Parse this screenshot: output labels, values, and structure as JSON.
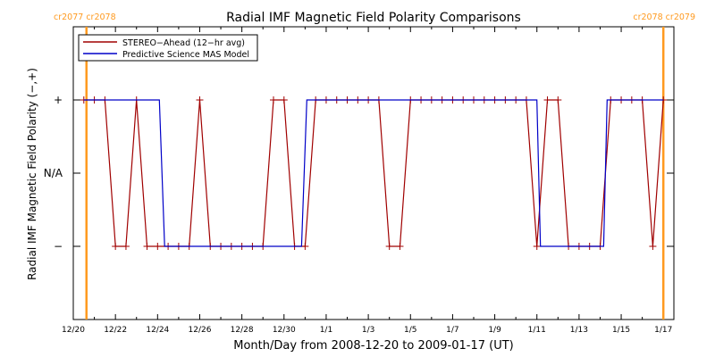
{
  "chart_data": {
    "type": "line",
    "title": "Radial IMF Magnetic Field Polarity Comparisons",
    "xlabel": "Month/Day from 2008-12-20 to 2009-01-17 (UT)",
    "ylabel": "Radial IMF Magnetic Field Polarity (−,+)",
    "xlim": [
      "2008-12-20T00:00",
      "2009-01-17T12:00"
    ],
    "ylim": [
      -2,
      2
    ],
    "y_ticks": [
      {
        "value": 1,
        "label": "+"
      },
      {
        "value": 0,
        "label": "N/A"
      },
      {
        "value": -1,
        "label": "−"
      }
    ],
    "x_ticks": [
      {
        "date": "2008-12-20",
        "label": "12/20"
      },
      {
        "date": "2008-12-22",
        "label": "12/22"
      },
      {
        "date": "2008-12-24",
        "label": "12/24"
      },
      {
        "date": "2008-12-26",
        "label": "12/26"
      },
      {
        "date": "2008-12-28",
        "label": "12/28"
      },
      {
        "date": "2008-12-30",
        "label": "12/30"
      },
      {
        "date": "2009-01-01",
        "label": "1/1"
      },
      {
        "date": "2009-01-03",
        "label": "1/3"
      },
      {
        "date": "2009-01-05",
        "label": "1/5"
      },
      {
        "date": "2009-01-07",
        "label": "1/7"
      },
      {
        "date": "2009-01-09",
        "label": "1/9"
      },
      {
        "date": "2009-01-11",
        "label": "1/11"
      },
      {
        "date": "2009-01-13",
        "label": "1/13"
      },
      {
        "date": "2009-01-15",
        "label": "1/15"
      },
      {
        "date": "2009-01-17",
        "label": "1/17"
      }
    ],
    "vertical_markers": [
      {
        "date": "2008-12-20T15:00",
        "label": "cr2077 cr2078",
        "label_side": "top-left"
      },
      {
        "date": "2009-01-17T00:00",
        "label": "cr2078 cr2079",
        "label_side": "top-right"
      }
    ],
    "legend": {
      "placement": "top-left"
    },
    "series": [
      {
        "name": "STEREO−Ahead (12−hr avg)",
        "color": "#a00000",
        "markers": "plus",
        "points": [
          [
            "2008-12-20T12:00",
            1
          ],
          [
            "2008-12-21T00:00",
            1
          ],
          [
            "2008-12-21T12:00",
            1
          ],
          [
            "2008-12-22T00:00",
            -1
          ],
          [
            "2008-12-22T12:00",
            -1
          ],
          [
            "2008-12-23T00:00",
            1
          ],
          [
            "2008-12-23T12:00",
            -1
          ],
          [
            "2008-12-24T00:00",
            -1
          ],
          [
            "2008-12-24T12:00",
            -1
          ],
          [
            "2008-12-25T00:00",
            -1
          ],
          [
            "2008-12-25T12:00",
            -1
          ],
          [
            "2008-12-26T00:00",
            1
          ],
          [
            "2008-12-26T12:00",
            -1
          ],
          [
            "2008-12-27T00:00",
            -1
          ],
          [
            "2008-12-27T12:00",
            -1
          ],
          [
            "2008-12-28T00:00",
            -1
          ],
          [
            "2008-12-28T12:00",
            -1
          ],
          [
            "2008-12-29T00:00",
            -1
          ],
          [
            "2008-12-29T12:00",
            1
          ],
          [
            "2008-12-30T00:00",
            1
          ],
          [
            "2008-12-30T12:00",
            -1
          ],
          [
            "2008-12-31T00:00",
            -1
          ],
          [
            "2008-12-31T12:00",
            1
          ],
          [
            "2009-01-01T00:00",
            1
          ],
          [
            "2009-01-01T12:00",
            1
          ],
          [
            "2009-01-02T00:00",
            1
          ],
          [
            "2009-01-02T12:00",
            1
          ],
          [
            "2009-01-03T00:00",
            1
          ],
          [
            "2009-01-03T12:00",
            1
          ],
          [
            "2009-01-04T00:00",
            -1
          ],
          [
            "2009-01-04T12:00",
            -1
          ],
          [
            "2009-01-05T00:00",
            1
          ],
          [
            "2009-01-05T12:00",
            1
          ],
          [
            "2009-01-06T00:00",
            1
          ],
          [
            "2009-01-06T12:00",
            1
          ],
          [
            "2009-01-07T00:00",
            1
          ],
          [
            "2009-01-07T12:00",
            1
          ],
          [
            "2009-01-08T00:00",
            1
          ],
          [
            "2009-01-08T12:00",
            1
          ],
          [
            "2009-01-09T00:00",
            1
          ],
          [
            "2009-01-09T12:00",
            1
          ],
          [
            "2009-01-10T00:00",
            1
          ],
          [
            "2009-01-10T12:00",
            1
          ],
          [
            "2009-01-11T00:00",
            -1
          ],
          [
            "2009-01-11T12:00",
            1
          ],
          [
            "2009-01-12T00:00",
            1
          ],
          [
            "2009-01-12T12:00",
            -1
          ],
          [
            "2009-01-13T00:00",
            -1
          ],
          [
            "2009-01-13T12:00",
            -1
          ],
          [
            "2009-01-14T00:00",
            -1
          ],
          [
            "2009-01-14T12:00",
            1
          ],
          [
            "2009-01-15T00:00",
            1
          ],
          [
            "2009-01-15T12:00",
            1
          ],
          [
            "2009-01-16T00:00",
            1
          ],
          [
            "2009-01-16T12:00",
            -1
          ],
          [
            "2009-01-17T00:00",
            1
          ]
        ]
      },
      {
        "name": "Predictive Science MAS Model",
        "color": "#0000c8",
        "markers": "none",
        "points": [
          [
            "2008-12-20T12:00",
            1
          ],
          [
            "2008-12-24T02:00",
            1
          ],
          [
            "2008-12-24T08:00",
            -1
          ],
          [
            "2008-12-30T20:00",
            -1
          ],
          [
            "2008-12-31T02:00",
            1
          ],
          [
            "2009-01-11T00:00",
            1
          ],
          [
            "2009-01-11T04:00",
            -1
          ],
          [
            "2009-01-14T04:00",
            -1
          ],
          [
            "2009-01-14T08:00",
            1
          ],
          [
            "2009-01-17T00:00",
            1
          ]
        ]
      }
    ]
  }
}
